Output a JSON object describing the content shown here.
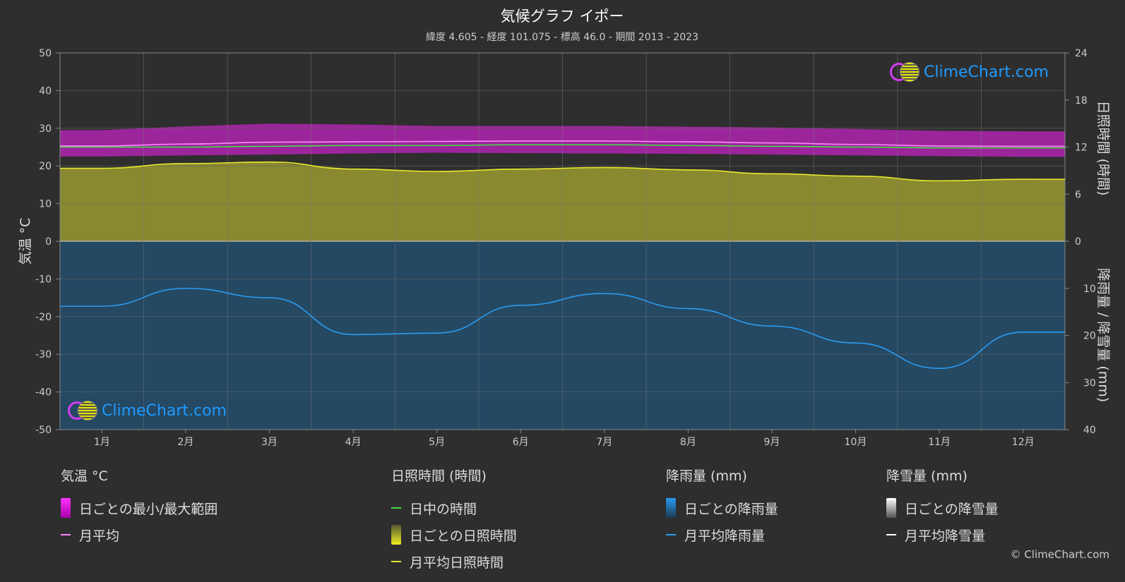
{
  "header": {
    "title": "気候グラフ イポー",
    "subtitle": "緯度 4.605 - 経度 101.075 - 標高 46.0 - 期間 2013 - 2023"
  },
  "axes": {
    "left_label": "気温 °C",
    "right_top_label": "日照時間 (時間)",
    "right_bottom_label": "降雨量 / 降雪量 (mm)",
    "left_ticks": [
      "50",
      "40",
      "30",
      "20",
      "10",
      "0",
      "-10",
      "-20",
      "-30",
      "-40",
      "-50"
    ],
    "right_top_ticks": [
      "24",
      "18",
      "12",
      "6",
      "0"
    ],
    "right_bottom_ticks": [
      "10",
      "20",
      "30",
      "40"
    ]
  },
  "logo_text": "ClimeChart.com",
  "copyright": "© ClimeChart.com",
  "legend": {
    "temp": {
      "title": "気温 °C",
      "range": "日ごとの最小/最大範囲",
      "avg": "月平均"
    },
    "sun": {
      "title": "日照時間 (時間)",
      "daylight": "日中の時間",
      "daily": "日ごとの日照時間",
      "avg": "月平均日照時間"
    },
    "rain": {
      "title": "降雨量 (mm)",
      "daily": "日ごとの降雨量",
      "avg": "月平均降雨量"
    },
    "snow": {
      "title": "降雪量 (mm)",
      "daily": "日ごとの降雪量",
      "avg": "月平均降雪量"
    }
  },
  "colors": {
    "temp_range": "#cc22cc",
    "temp_avg": "#ff88ff",
    "daylight": "#44dd44",
    "sunshine_fill": "#a8a830",
    "sunshine_avg": "#e8e830",
    "rain_fill": "#1f5f8f",
    "rain_avg": "#2a9bf0",
    "snow_avg": "#ffffff"
  },
  "chart_data": {
    "type": "line",
    "categories": [
      "1月",
      "2月",
      "3月",
      "4月",
      "5月",
      "6月",
      "7月",
      "8月",
      "9月",
      "10月",
      "11月",
      "12月"
    ],
    "temp_ylim": [
      -50,
      50
    ],
    "sunshine_ylim": [
      0,
      24
    ],
    "rain_ylim_inverted": [
      0,
      40
    ],
    "series": [
      {
        "name": "月平均",
        "unit": "°C",
        "values": [
          25.3,
          25.8,
          26.3,
          26.4,
          26.5,
          26.6,
          26.6,
          26.4,
          26.1,
          25.7,
          25.3,
          25.2
        ]
      },
      {
        "name": "日ごとの最小/最大範囲 (min)",
        "unit": "°C",
        "values": [
          22.5,
          22.8,
          23.0,
          23.3,
          23.5,
          23.4,
          23.3,
          23.2,
          23.0,
          22.8,
          22.6,
          22.4
        ]
      },
      {
        "name": "日ごとの最小/最大範囲 (max)",
        "unit": "°C",
        "values": [
          29.5,
          30.5,
          31.2,
          31.0,
          30.6,
          30.6,
          30.6,
          30.4,
          30.2,
          29.8,
          29.3,
          29.2
        ]
      },
      {
        "name": "日中の時間",
        "unit": "時間",
        "values": [
          12.0,
          12.0,
          12.1,
          12.2,
          12.2,
          12.3,
          12.3,
          12.2,
          12.1,
          12.0,
          11.9,
          11.9
        ]
      },
      {
        "name": "月平均日照時間",
        "unit": "時間",
        "values": [
          9.3,
          9.9,
          10.1,
          9.2,
          8.9,
          9.2,
          9.4,
          9.1,
          8.6,
          8.3,
          7.7,
          7.9
        ]
      },
      {
        "name": "月平均降雨量",
        "unit": "mm",
        "values": [
          13.8,
          10.0,
          12.0,
          19.8,
          19.5,
          13.6,
          11.1,
          14.3,
          18.0,
          21.6,
          27.0,
          19.3
        ]
      },
      {
        "name": "月平均降雪量",
        "unit": "mm",
        "values": [
          0,
          0,
          0,
          0,
          0,
          0,
          0,
          0,
          0,
          0,
          0,
          0
        ]
      }
    ]
  }
}
